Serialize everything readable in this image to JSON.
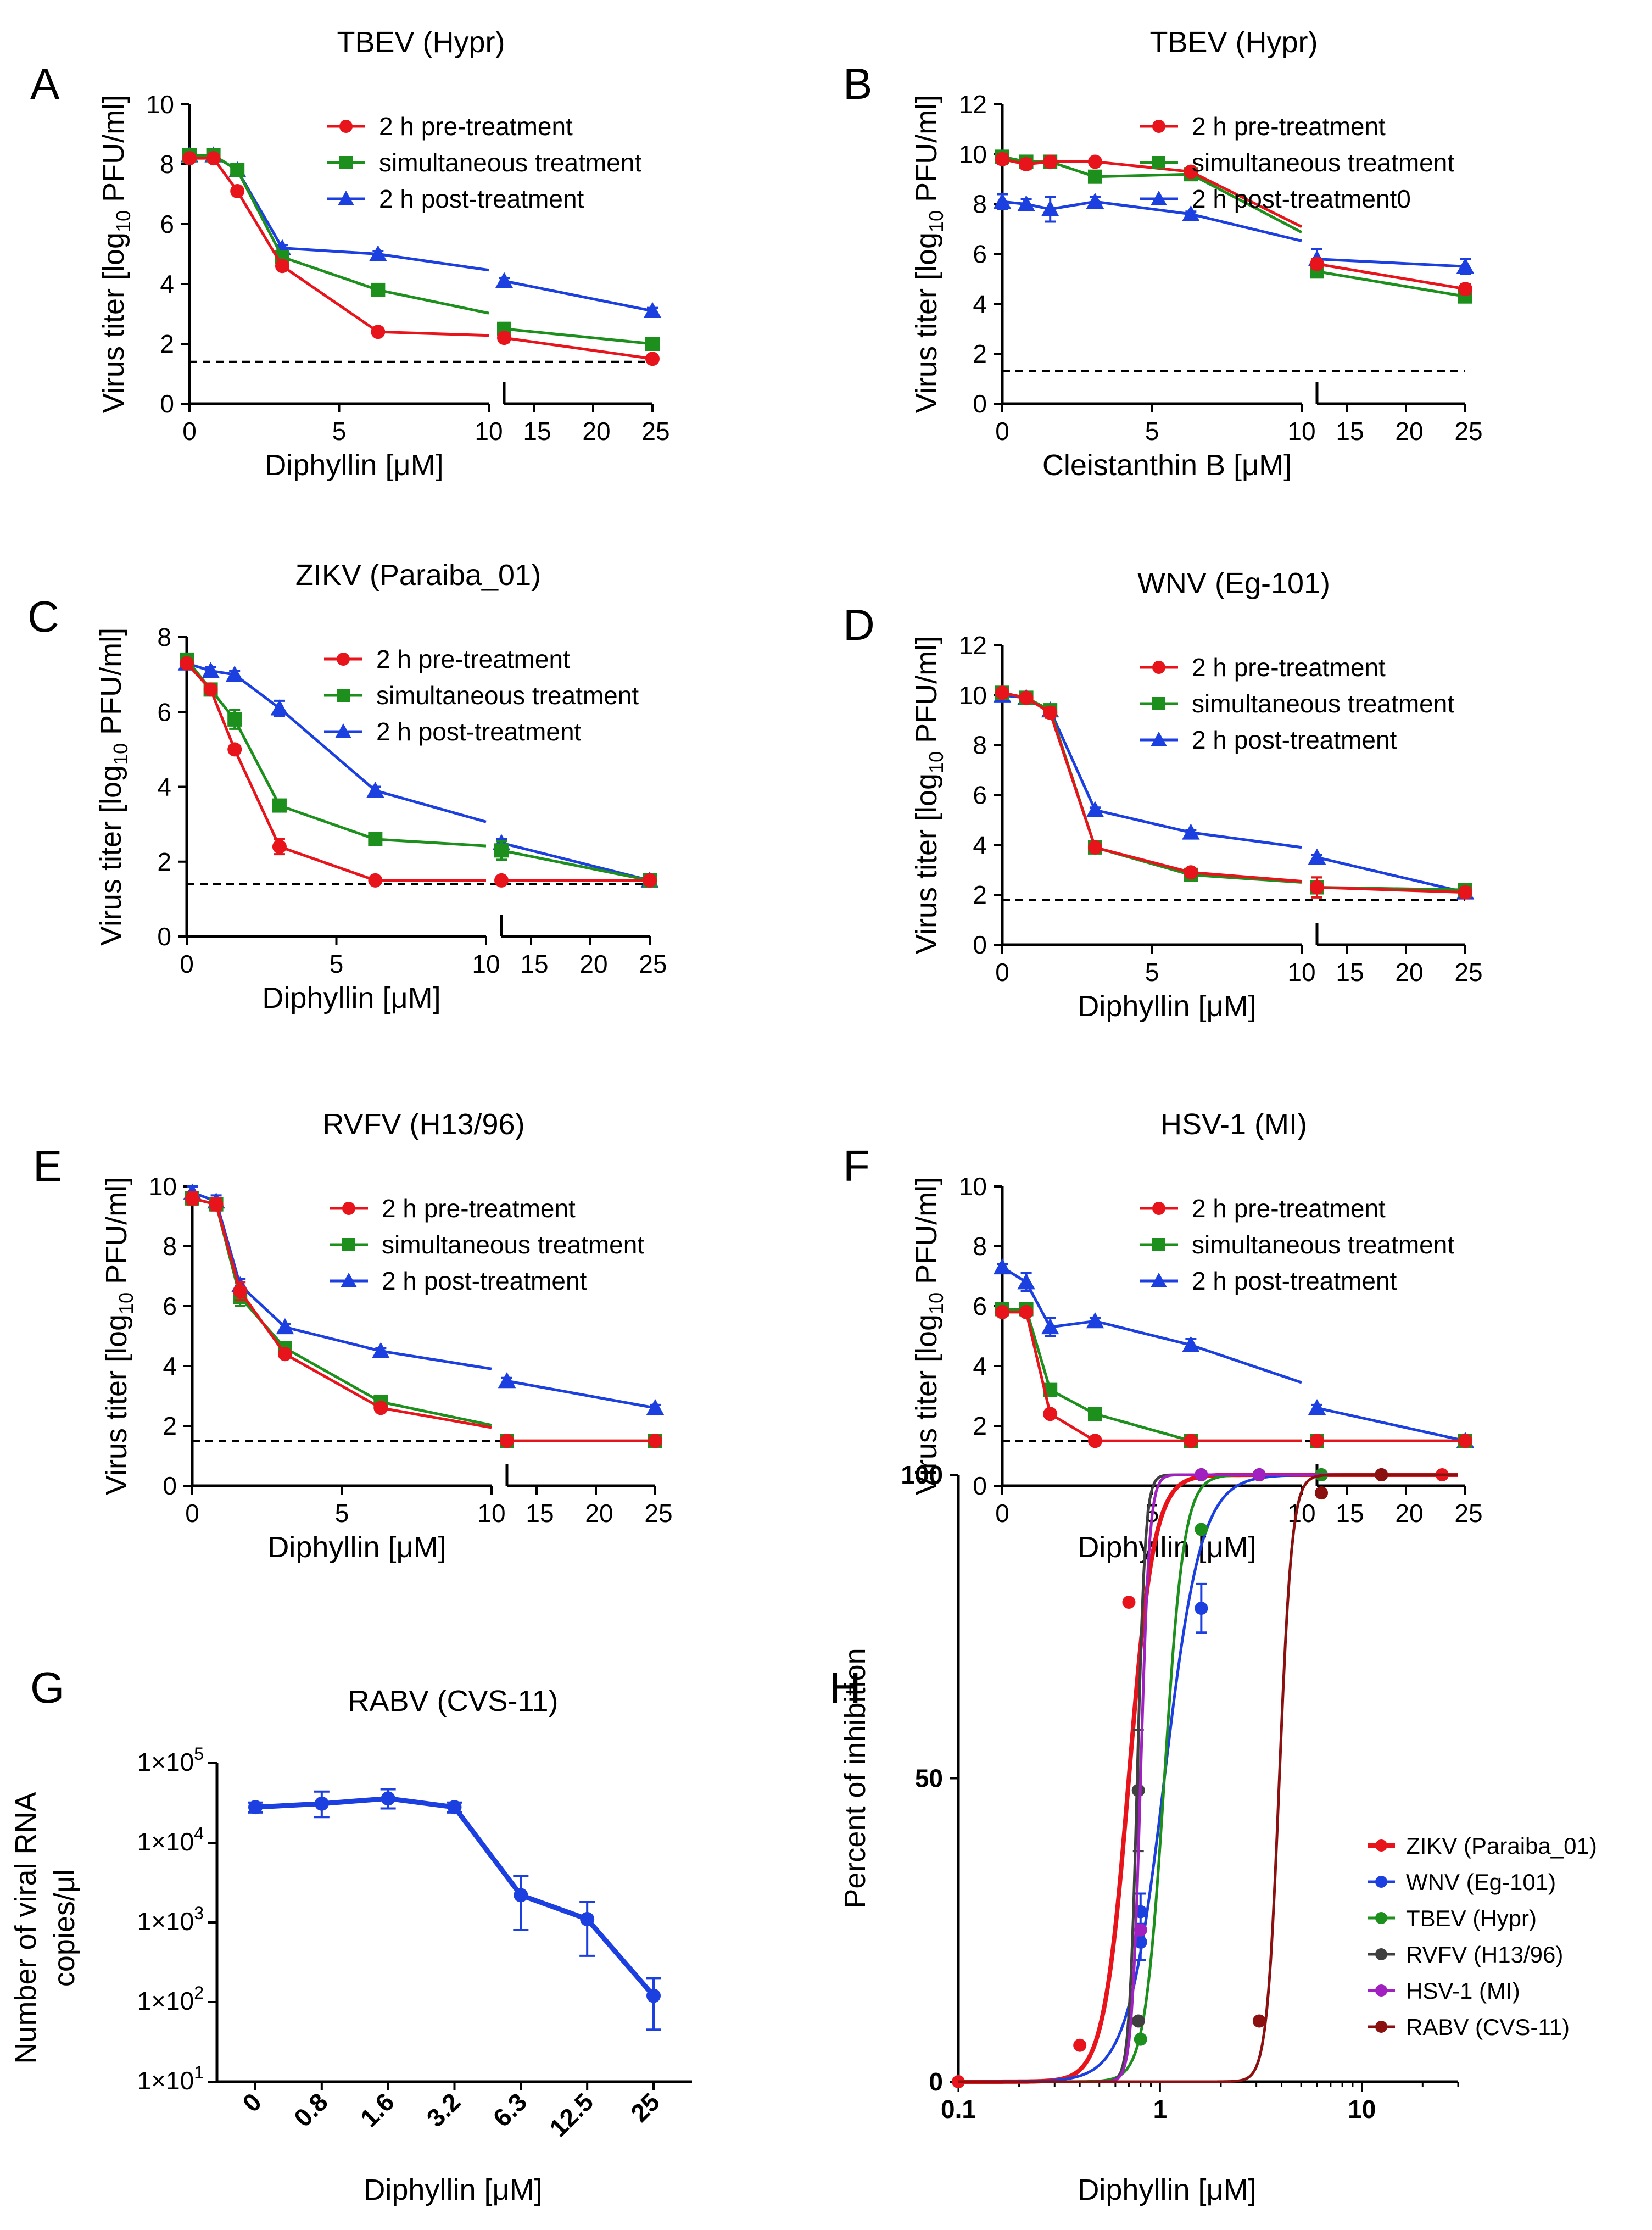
{
  "figure": {
    "colors": {
      "pre": "#e8141b",
      "sim": "#1c8f1c",
      "post": "#1c3fe0",
      "axis": "#000000",
      "limit": "#000000"
    },
    "tbev_note": "Sub-superscript 10 rendered via base+sub text"
  },
  "chart_data": [
    {
      "id": "A",
      "letter": "A",
      "type": "line",
      "title": "TBEV (Hypr)",
      "xlabel": "Diphyllin [μM]",
      "ylabel_main": "Virus titer [log",
      "ylabel_sub": "10",
      "ylabel_tail": " PFU/ml]",
      "ylim": [
        0,
        10
      ],
      "yticks": [
        "0",
        "2",
        "4",
        "6",
        "8",
        "10"
      ],
      "xticks_left": [
        "0",
        "5",
        "10"
      ],
      "xticks_right": [
        "15",
        "20",
        "25"
      ],
      "detection_limit": 1.4,
      "series": [
        {
          "name": "2 h pre-treatment",
          "key": "pre",
          "marker": "circle",
          "x": [
            0,
            0.8,
            1.6,
            3.1,
            6.3,
            12.5,
            25
          ],
          "y": [
            8.2,
            8.2,
            7.1,
            4.6,
            2.4,
            2.2,
            1.5
          ],
          "err": [
            0.1,
            0.1,
            0.1,
            0.1,
            0.1,
            0.15,
            0.1
          ]
        },
        {
          "name": "simultaneous treatment",
          "key": "sim",
          "marker": "square",
          "x": [
            0,
            0.8,
            1.6,
            3.1,
            6.3,
            12.5,
            25
          ],
          "y": [
            8.3,
            8.3,
            7.8,
            4.9,
            3.8,
            2.5,
            2.0
          ],
          "err": [
            0.1,
            0.1,
            0.1,
            0.15,
            0.1,
            0.2,
            0.2
          ]
        },
        {
          "name": "2 h post-treatment",
          "key": "post",
          "marker": "triangle",
          "x": [
            0,
            0.8,
            1.6,
            3.1,
            6.3,
            12.5,
            25
          ],
          "y": [
            8.3,
            8.3,
            7.8,
            5.2,
            5.0,
            4.1,
            3.1
          ],
          "err": [
            0.1,
            0.1,
            0.1,
            0.1,
            0.1,
            0.1,
            0.1
          ]
        }
      ]
    },
    {
      "id": "B",
      "letter": "B",
      "type": "line",
      "title": "TBEV (Hypr)",
      "xlabel": "Cleistanthin B [μM]",
      "ylabel_main": "Virus titer [log",
      "ylabel_sub": "10",
      "ylabel_tail": " PFU/ml]",
      "ylim": [
        0,
        12
      ],
      "yticks": [
        "0",
        "2",
        "4",
        "6",
        "8",
        "10",
        "12"
      ],
      "xticks_left": [
        "0",
        "5",
        "10"
      ],
      "xticks_right": [
        "15",
        "20",
        "25"
      ],
      "detection_limit": 1.3,
      "series": [
        {
          "name": "2 h pre-treatment",
          "key": "pre",
          "marker": "circle",
          "x": [
            0,
            0.8,
            1.6,
            3.1,
            6.3,
            12.5,
            25
          ],
          "y": [
            9.8,
            9.6,
            9.7,
            9.7,
            9.3,
            5.6,
            4.6
          ],
          "err": [
            0.2,
            0.2,
            0.2,
            0.1,
            0.1,
            0.2,
            0.2
          ]
        },
        {
          "name": "simultaneous treatment",
          "key": "sim",
          "marker": "square",
          "x": [
            0,
            0.8,
            1.6,
            3.1,
            6.3,
            12.5,
            25
          ],
          "y": [
            9.9,
            9.7,
            9.7,
            9.1,
            9.2,
            5.3,
            4.3
          ],
          "err": [
            0.2,
            0.2,
            0.2,
            0.1,
            0.1,
            0.2,
            0.2
          ]
        },
        {
          "name": "2 h post-treatment0",
          "key": "post",
          "marker": "triangle",
          "x": [
            0,
            0.8,
            1.6,
            3.1,
            6.3,
            12.5,
            25
          ],
          "y": [
            8.1,
            8.0,
            7.8,
            8.1,
            7.6,
            5.8,
            5.5
          ],
          "err": [
            0.3,
            0.2,
            0.5,
            0.2,
            0.1,
            0.4,
            0.3
          ]
        }
      ]
    },
    {
      "id": "C",
      "letter": "C",
      "type": "line",
      "title": "ZIKV (Paraiba_01)",
      "xlabel": "Diphyllin [μM]",
      "ylabel_main": "Virus titer [log",
      "ylabel_sub": "10",
      "ylabel_tail": " PFU/ml]",
      "ylim": [
        0,
        8
      ],
      "yticks": [
        "0",
        "2",
        "4",
        "6",
        "8"
      ],
      "xticks_left": [
        "0",
        "5",
        "10"
      ],
      "xticks_right": [
        "15",
        "20",
        "25"
      ],
      "detection_limit": 1.4,
      "series": [
        {
          "name": "2 h pre-treatment",
          "key": "pre",
          "marker": "circle",
          "x": [
            0,
            0.8,
            1.6,
            3.1,
            6.3,
            12.5,
            25
          ],
          "y": [
            7.3,
            6.6,
            5.0,
            2.4,
            1.5,
            1.5,
            1.5
          ],
          "err": [
            0.1,
            0.1,
            0.1,
            0.2,
            0.1,
            0.1,
            0.1
          ]
        },
        {
          "name": "simultaneous treatment",
          "key": "sim",
          "marker": "square",
          "x": [
            0,
            0.8,
            1.6,
            3.1,
            6.3,
            12.5,
            25
          ],
          "y": [
            7.4,
            6.6,
            5.8,
            3.5,
            2.6,
            2.3,
            1.5
          ],
          "err": [
            0.1,
            0.1,
            0.25,
            0.15,
            0.1,
            0.25,
            0.1
          ]
        },
        {
          "name": "2 h post-treatment",
          "key": "post",
          "marker": "triangle",
          "x": [
            0,
            0.8,
            1.6,
            3.1,
            6.3,
            12.5,
            25
          ],
          "y": [
            7.3,
            7.1,
            7.0,
            6.1,
            3.9,
            2.5,
            1.5
          ],
          "err": [
            0.1,
            0.1,
            0.1,
            0.2,
            0.1,
            0.1,
            0.1
          ]
        }
      ]
    },
    {
      "id": "D",
      "letter": "D",
      "type": "line",
      "title": "WNV (Eg-101)",
      "xlabel": "Diphyllin [μM]",
      "ylabel_main": "Virus titer [log",
      "ylabel_sub": "10",
      "ylabel_tail": " PFU/ml]",
      "ylim": [
        0,
        12
      ],
      "yticks": [
        "0",
        "2",
        "4",
        "6",
        "8",
        "10",
        "12"
      ],
      "xticks_left": [
        "0",
        "5",
        "10"
      ],
      "xticks_right": [
        "15",
        "20",
        "25"
      ],
      "detection_limit": 1.8,
      "series": [
        {
          "name": "2 h pre-treatment",
          "key": "pre",
          "marker": "circle",
          "x": [
            0,
            0.8,
            1.6,
            3.1,
            6.3,
            12.5,
            25
          ],
          "y": [
            10.1,
            9.9,
            9.3,
            3.9,
            2.9,
            2.3,
            2.1
          ],
          "err": [
            0.1,
            0.1,
            0.2,
            0.15,
            0.1,
            0.4,
            0.2
          ]
        },
        {
          "name": "simultaneous treatment",
          "key": "sim",
          "marker": "square",
          "x": [
            0,
            0.8,
            1.6,
            3.1,
            6.3,
            12.5,
            25
          ],
          "y": [
            10.1,
            9.9,
            9.4,
            3.9,
            2.8,
            2.3,
            2.2
          ],
          "err": [
            0.1,
            0.1,
            0.2,
            0.15,
            0.1,
            0.4,
            0.2
          ]
        },
        {
          "name": "2 h post-treatment",
          "key": "post",
          "marker": "triangle",
          "x": [
            0,
            0.8,
            1.6,
            3.1,
            6.3,
            12.5,
            25
          ],
          "y": [
            10.0,
            9.9,
            9.4,
            5.4,
            4.5,
            3.5,
            2.1
          ],
          "err": [
            0.1,
            0.1,
            0.2,
            0.1,
            0.1,
            0.1,
            0.2
          ]
        }
      ]
    },
    {
      "id": "E",
      "letter": "E",
      "type": "line",
      "title": "RVFV (H13/96)",
      "xlabel": "Diphyllin [μM]",
      "ylabel_main": "Virus titer [log",
      "ylabel_sub": "10",
      "ylabel_tail": " PFU/ml]",
      "ylim": [
        0,
        10
      ],
      "yticks": [
        "0",
        "2",
        "4",
        "6",
        "8",
        "10"
      ],
      "xticks_left": [
        "0",
        "5",
        "10"
      ],
      "xticks_right": [
        "15",
        "20",
        "25"
      ],
      "detection_limit": 1.5,
      "series": [
        {
          "name": "2 h pre-treatment",
          "key": "pre",
          "marker": "circle",
          "x": [
            0,
            0.8,
            1.6,
            3.1,
            6.3,
            12.5,
            25
          ],
          "y": [
            9.6,
            9.4,
            6.5,
            4.4,
            2.6,
            1.5,
            1.5
          ],
          "err": [
            0.2,
            0.2,
            0.3,
            0.1,
            0.1,
            0.1,
            0.1
          ]
        },
        {
          "name": "simultaneous treatment",
          "key": "sim",
          "marker": "square",
          "x": [
            0,
            0.8,
            1.6,
            3.1,
            6.3,
            12.5,
            25
          ],
          "y": [
            9.6,
            9.4,
            6.3,
            4.6,
            2.8,
            1.5,
            1.5
          ],
          "err": [
            0.2,
            0.2,
            0.3,
            0.1,
            0.1,
            0.1,
            0.1
          ]
        },
        {
          "name": "2 h post-treatment",
          "key": "post",
          "marker": "triangle",
          "x": [
            0,
            0.8,
            1.6,
            3.1,
            6.3,
            12.5,
            25
          ],
          "y": [
            9.8,
            9.5,
            6.7,
            5.3,
            4.5,
            3.5,
            2.6
          ],
          "err": [
            0.2,
            0.2,
            0.2,
            0.1,
            0.1,
            0.1,
            0.1
          ]
        }
      ]
    },
    {
      "id": "F",
      "letter": "F",
      "type": "line",
      "title": "HSV-1 (MI)",
      "xlabel": "Diphyllin [μM]",
      "ylabel_main": "Virus titer [log",
      "ylabel_sub": "10",
      "ylabel_tail": " PFU/ml]",
      "ylim": [
        0,
        10
      ],
      "yticks": [
        "0",
        "2",
        "4",
        "6",
        "8",
        "10"
      ],
      "xticks_left": [
        "0",
        "5",
        "10"
      ],
      "xticks_right": [
        "15",
        "20",
        "25"
      ],
      "detection_limit": 1.5,
      "series": [
        {
          "name": "2 h pre-treatment",
          "key": "pre",
          "marker": "circle",
          "x": [
            0,
            0.8,
            1.6,
            3.1,
            6.3,
            12.5,
            25
          ],
          "y": [
            5.8,
            5.8,
            2.4,
            1.5,
            1.5,
            1.5,
            1.5
          ],
          "err": [
            0.1,
            0.1,
            0.1,
            0.1,
            0.1,
            0.1,
            0.1
          ]
        },
        {
          "name": "simultaneous treatment",
          "key": "sim",
          "marker": "square",
          "x": [
            0,
            0.8,
            1.6,
            3.1,
            6.3,
            12.5,
            25
          ],
          "y": [
            5.9,
            5.9,
            3.2,
            2.4,
            1.5,
            1.5,
            1.5
          ],
          "err": [
            0.1,
            0.1,
            0.1,
            0.2,
            0.1,
            0.1,
            0.1
          ]
        },
        {
          "name": "2 h post-treatment",
          "key": "post",
          "marker": "triangle",
          "x": [
            0,
            0.8,
            1.6,
            3.1,
            6.3,
            12.5,
            25
          ],
          "y": [
            7.3,
            6.8,
            5.3,
            5.5,
            4.7,
            2.6,
            1.5
          ],
          "err": [
            0.1,
            0.3,
            0.3,
            0.1,
            0.2,
            0.1,
            0.1
          ]
        }
      ]
    },
    {
      "id": "G",
      "letter": "G",
      "type": "line",
      "title": "RABV (CVS-11)",
      "xlabel": "Diphyllin [μM]",
      "ylabel_line1": "Number of viral RNA",
      "ylabel_line2": "copies/μl",
      "categories": [
        "0",
        "0.8",
        "1.6",
        "3.2",
        "6.3",
        "12.5",
        "25"
      ],
      "yscale": "log",
      "ylim": [
        10,
        100000
      ],
      "ytick_mantissa": "1×10",
      "ytick_exponents": [
        "1",
        "2",
        "3",
        "4",
        "5"
      ],
      "color": "#1c3fe0",
      "values": [
        28000,
        31000,
        36000,
        28000,
        2200,
        1100,
        120
      ],
      "err_low": [
        24000,
        21000,
        27000,
        24000,
        800,
        380,
        45
      ],
      "err_high": [
        32000,
        44000,
        47000,
        32000,
        3800,
        1800,
        200
      ]
    },
    {
      "id": "H",
      "letter": "H",
      "type": "scatter",
      "title": "",
      "xlabel": "Diphyllin [μM]",
      "ylabel": "Percent of inhibition",
      "xscale": "log",
      "xlim": [
        0.1,
        30
      ],
      "ylim": [
        0,
        100
      ],
      "xticks": [
        "0.1",
        "1",
        "10"
      ],
      "yticks": [
        "0",
        "50",
        "100"
      ],
      "series": [
        {
          "name": "ZIKV (Paraiba_01)",
          "color": "#e8141b",
          "ic50": 0.7,
          "hill": 7,
          "x": [
            0.1,
            0.4,
            0.7,
            1.6,
            3.1,
            6.3,
            12.5,
            25
          ],
          "y": [
            0,
            6,
            79,
            100,
            100,
            100,
            100,
            100
          ],
          "thick": true
        },
        {
          "name": "WNV (Eg-101)",
          "color": "#1c3fe0",
          "ic50": 1.05,
          "hill": 4.8,
          "x": [
            0.8,
            0.8,
            1.6,
            3.1,
            6.3,
            12.5
          ],
          "y": [
            23,
            28,
            78,
            100,
            100,
            100
          ],
          "err": [
            3,
            3,
            4,
            0,
            0,
            0
          ]
        },
        {
          "name": "TBEV (Hypr)",
          "color": "#1c8f1c",
          "ic50": 1.05,
          "hill": 9,
          "x": [
            0.8,
            1.6,
            3.1,
            6.3
          ],
          "y": [
            7,
            91,
            100,
            100
          ]
        },
        {
          "name": "RVFV (H13/96)",
          "color": "#404040",
          "ic50": 0.77,
          "hill": 22,
          "x": [
            0.78,
            0.78,
            1.6,
            3.1
          ],
          "y": [
            48,
            10,
            100,
            100
          ],
          "err": [
            10,
            0,
            0,
            0
          ]
        },
        {
          "name": "HSV-1 (MI)",
          "color": "#a020c0",
          "ic50": 0.8,
          "hill": 20,
          "x": [
            0.8,
            1.6,
            3.1
          ],
          "y": [
            25,
            100,
            100
          ]
        },
        {
          "name": "RABV (CVS-11)",
          "color": "#8b1010",
          "ic50": 3.9,
          "hill": 14,
          "x": [
            3.1,
            6.3,
            12.5
          ],
          "y": [
            10,
            97,
            100
          ]
        }
      ]
    }
  ]
}
